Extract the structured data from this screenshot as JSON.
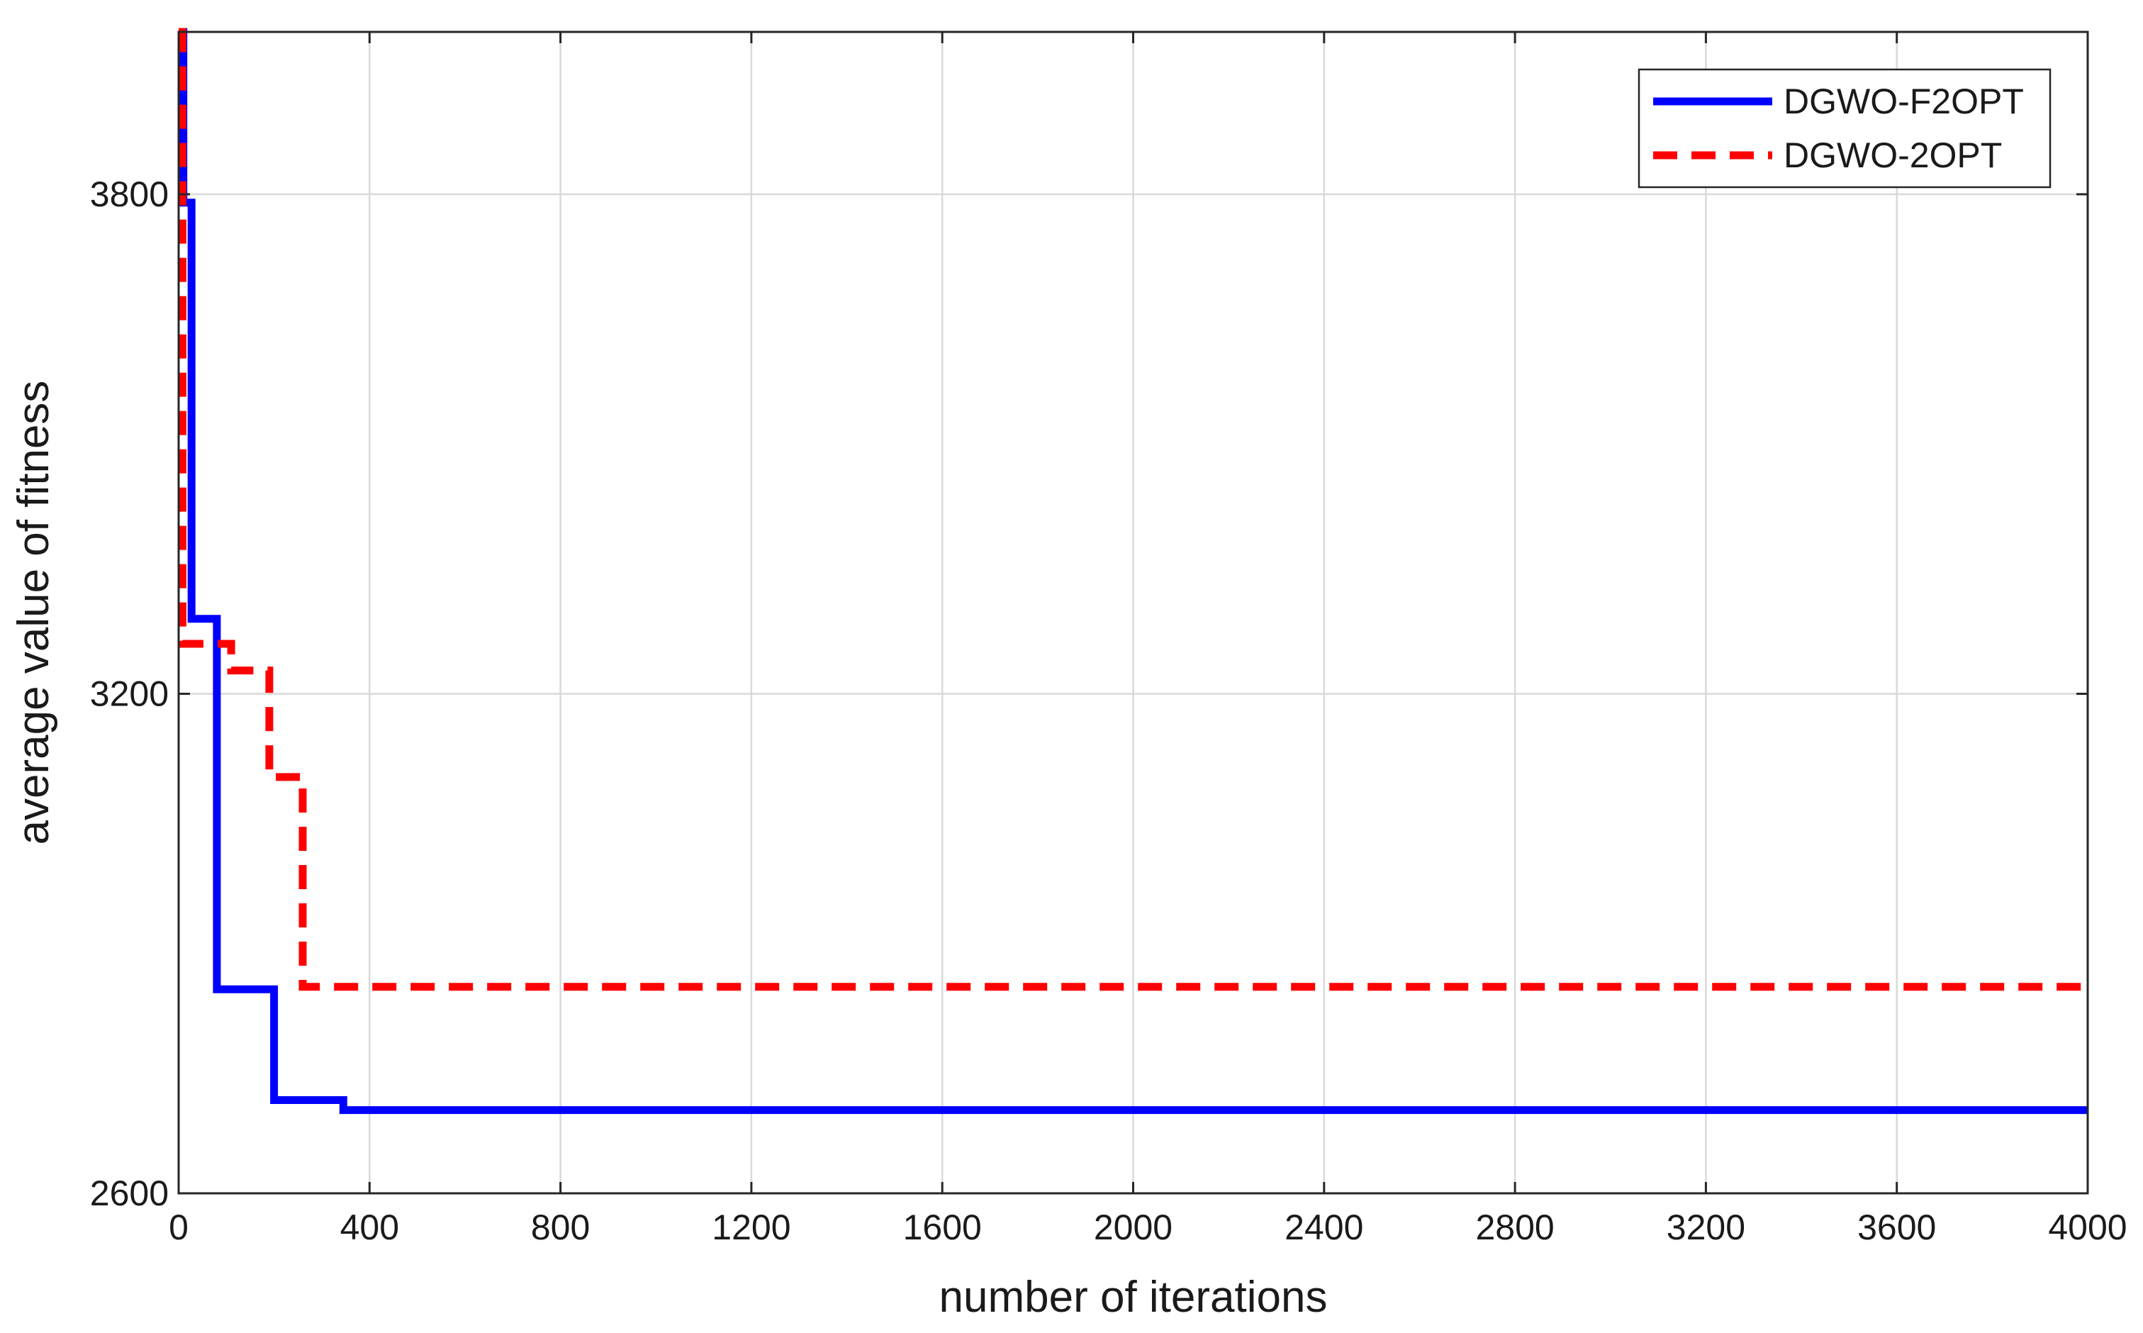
{
  "chart_data": {
    "type": "line",
    "title": "",
    "xlabel": "number of iterations",
    "ylabel": "average value of fitness",
    "xlim": [
      0,
      4000
    ],
    "ylim": [
      2600,
      3995
    ],
    "xticks": [
      "0",
      "400",
      "800",
      "1200",
      "1600",
      "2000",
      "2400",
      "2800",
      "3200",
      "3600",
      "4000"
    ],
    "yticks": [
      "2600",
      "3200",
      "3800"
    ],
    "grid": true,
    "legend_position": "top-right",
    "series": [
      {
        "name": "DGWO-F2OPT",
        "color": "#0000ff",
        "style": "solid",
        "step": true,
        "points": [
          [
            0,
            3995
          ],
          [
            10,
            3995
          ],
          [
            10,
            3790
          ],
          [
            27,
            3790
          ],
          [
            27,
            3290
          ],
          [
            80,
            3290
          ],
          [
            80,
            2845
          ],
          [
            200,
            2845
          ],
          [
            200,
            2712
          ],
          [
            345,
            2712
          ],
          [
            345,
            2700
          ],
          [
            4000,
            2700
          ]
        ]
      },
      {
        "name": "DGWO-2OPT",
        "color": "#ff0000",
        "style": "dashed",
        "step": true,
        "points": [
          [
            0,
            3995
          ],
          [
            8,
            3995
          ],
          [
            8,
            3260
          ],
          [
            110,
            3260
          ],
          [
            110,
            3228
          ],
          [
            190,
            3228
          ],
          [
            190,
            3100
          ],
          [
            260,
            3100
          ],
          [
            260,
            2848
          ],
          [
            4000,
            2848
          ]
        ]
      }
    ]
  }
}
